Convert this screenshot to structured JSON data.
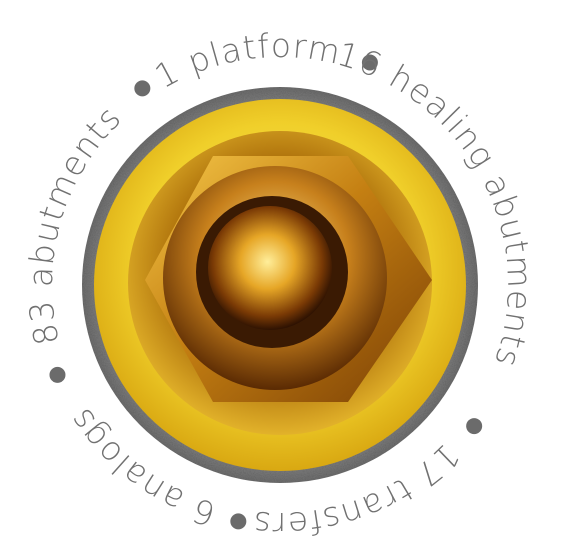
{
  "labels": [
    "1 platform",
    "16 healing abutments",
    "17 transfers",
    "6 analogs",
    "83 abutments"
  ]
}
